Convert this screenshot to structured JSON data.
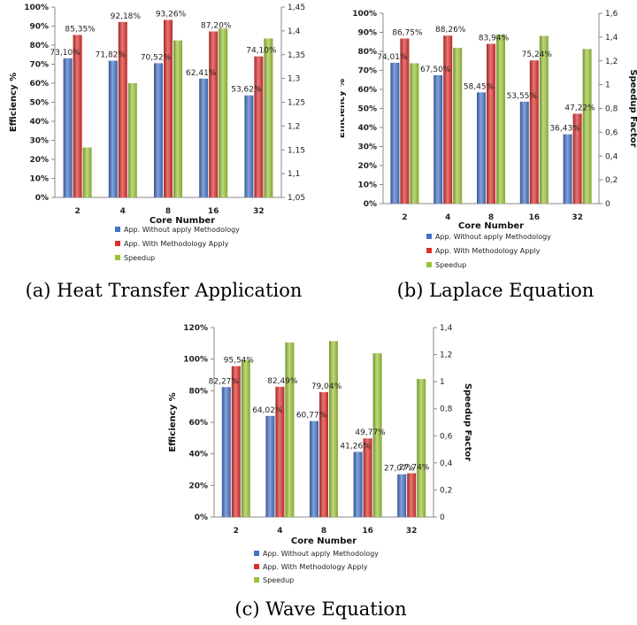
{
  "legend": {
    "without": "App. Without apply Methodology",
    "with": "App. With Methodology  Apply",
    "speedup": "Speedup"
  },
  "colors": {
    "without": "#4472c4",
    "with": "#d9302c",
    "speedup": "#9bc43a"
  },
  "chart_data": [
    {
      "type": "bar",
      "caption": "(a) Heat Transfer Application",
      "categories": [
        "2",
        "4",
        "8",
        "16",
        "32"
      ],
      "xlabel": "Core Number",
      "ylabel": "Efficiency %",
      "y2label": "Speedup  Factor",
      "ylim": [
        0,
        100
      ],
      "yticks": [
        "0%",
        "10%",
        "20%",
        "30%",
        "40%",
        "50%",
        "60%",
        "70%",
        "80%",
        "90%",
        "100%"
      ],
      "y2lim": [
        1.05,
        1.45
      ],
      "y2ticks": [
        "1,05",
        "1,1",
        "1,15",
        "1,2",
        "1,25",
        "1,3",
        "1,35",
        "1,4",
        "1,45"
      ],
      "series": [
        {
          "name": "App. Without apply Methodology",
          "values": [
            73.1,
            71.82,
            70.52,
            62.41,
            53.62
          ],
          "labels": [
            "73,10%",
            "71,82%",
            "70,52%",
            "62,41%",
            "53,62%"
          ]
        },
        {
          "name": "App. With Methodology  Apply",
          "values": [
            85.35,
            92.18,
            93.26,
            87.2,
            74.1
          ],
          "labels": [
            "85,35%",
            "92,18%",
            "93,26%",
            "87,20%",
            "74,10%"
          ]
        },
        {
          "name": "Speedup",
          "values": [
            1.155,
            1.29,
            1.38,
            1.405,
            1.384
          ],
          "axis": "right"
        }
      ],
      "legend_position": "bottom"
    },
    {
      "type": "bar",
      "caption": "(b) Laplace Equation",
      "categories": [
        "2",
        "4",
        "8",
        "16",
        "32"
      ],
      "xlabel": "Core Number",
      "ylabel": "Efficiency %",
      "y2label": "Speedup  Factor",
      "ylim": [
        0,
        100
      ],
      "yticks": [
        "0%",
        "10%",
        "20%",
        "30%",
        "40%",
        "50%",
        "60%",
        "70%",
        "80%",
        "90%",
        "100%"
      ],
      "y2lim": [
        0,
        1.6
      ],
      "y2ticks": [
        "0",
        "0,2",
        "0,4",
        "0,6",
        "0,8",
        "1",
        "1,2",
        "1,4",
        "1,6"
      ],
      "series": [
        {
          "name": "App. Without apply Methodology",
          "values": [
            74.01,
            67.5,
            58.45,
            53.55,
            36.43
          ],
          "labels": [
            "74,01%",
            "67,50%",
            "58,45%",
            "53,55%",
            "36,43%"
          ]
        },
        {
          "name": "App. With Methodology  Apply",
          "values": [
            86.75,
            88.26,
            83.94,
            75.24,
            47.22
          ],
          "labels": [
            "86,75%",
            "88,26%",
            "83,94%",
            "75,24%",
            "47,22%"
          ]
        },
        {
          "name": "Speedup",
          "values": [
            1.18,
            1.31,
            1.42,
            1.41,
            1.3
          ],
          "axis": "right"
        }
      ],
      "legend_position": "bottom"
    },
    {
      "type": "bar",
      "caption": "(c) Wave Equation",
      "categories": [
        "2",
        "4",
        "8",
        "16",
        "32"
      ],
      "xlabel": "Core Number",
      "ylabel": "Efficiency %",
      "y2label": "Speedup  Factor",
      "ylim": [
        0,
        120
      ],
      "yticks": [
        "0%",
        "20%",
        "40%",
        "60%",
        "80%",
        "100%",
        "120%"
      ],
      "y2lim": [
        0,
        1.4
      ],
      "y2ticks": [
        "0",
        "0,2",
        "0,4",
        "0,6",
        "0,8",
        "1",
        "1,2",
        "1,4"
      ],
      "series": [
        {
          "name": "App. Without apply Methodology",
          "values": [
            82.27,
            64.02,
            60.77,
            41.26,
            27.07
          ],
          "labels": [
            "82,27%",
            "64,02%",
            "60,77%",
            "41,26%",
            "27,07%"
          ]
        },
        {
          "name": "App. With Methodology  Apply",
          "values": [
            95.54,
            82.49,
            79.04,
            49.77,
            27.74
          ],
          "labels": [
            "95,54%",
            "82,49%",
            "79,04%",
            "49,77%",
            "27,74%"
          ]
        },
        {
          "name": "Speedup",
          "values": [
            1.16,
            1.29,
            1.3,
            1.21,
            1.02
          ],
          "axis": "right"
        }
      ],
      "legend_position": "bottom"
    }
  ]
}
